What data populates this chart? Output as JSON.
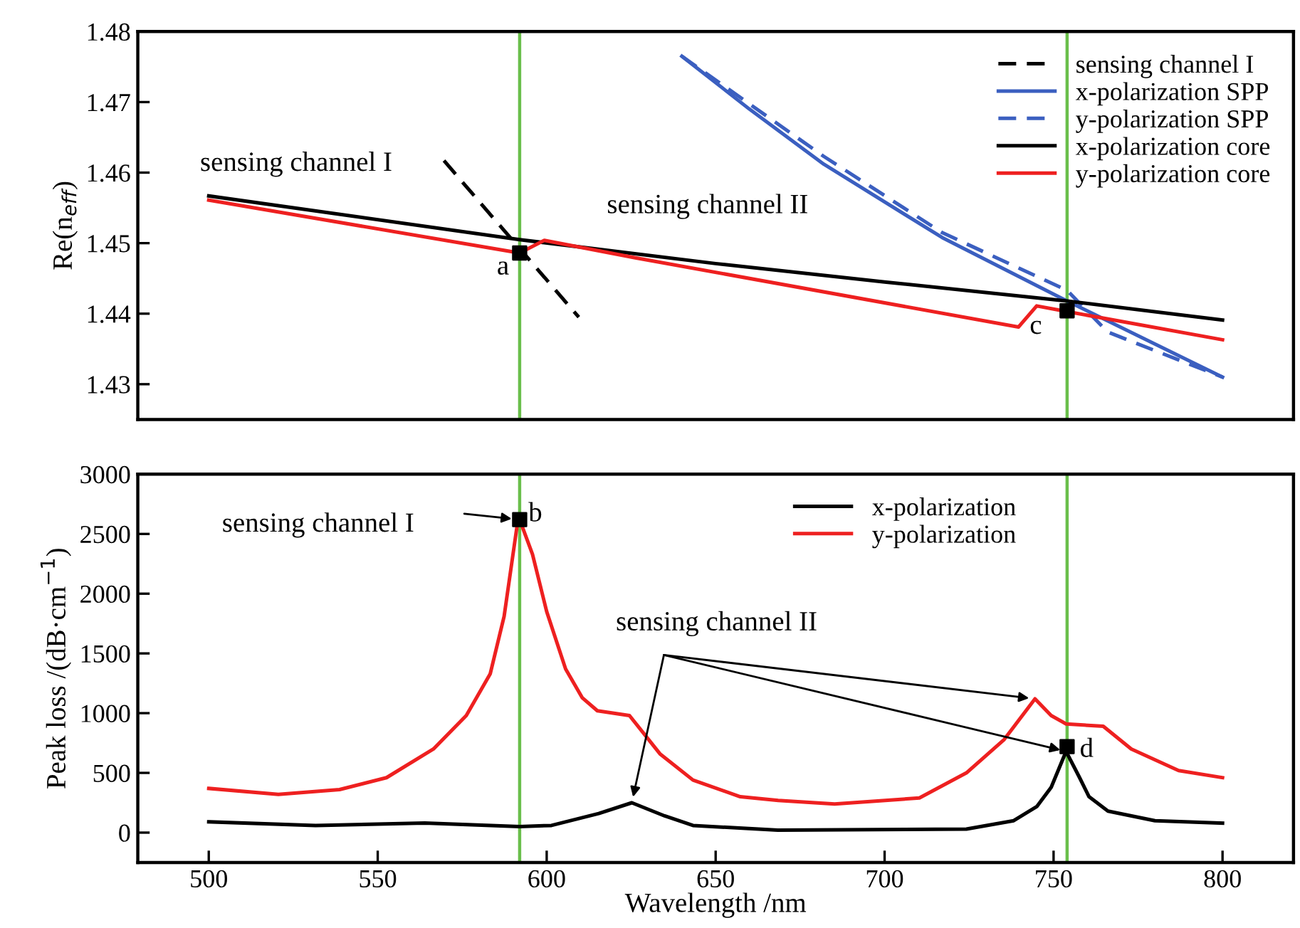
{
  "chart_data": [
    {
      "type": "line",
      "ylabel": "Re(n$_{eff}$)",
      "xlim": [
        479,
        821
      ],
      "ylim": [
        1.425,
        1.48
      ],
      "yticks": [
        1.43,
        1.44,
        1.45,
        1.46,
        1.47,
        1.48
      ],
      "tick_labels": "y",
      "grid": false,
      "legend": "top right",
      "series": [
        {
          "name": "sensing channel I",
          "color": "#000000",
          "line_style": "dashed",
          "x": [
            569.6,
            609.5
          ],
          "values": [
            1.4617,
            1.4395
          ]
        },
        {
          "name": "x-polarization SPP",
          "color": "#3b5fc0",
          "line_style": "solid",
          "x": [
            640,
            660,
            682,
            717,
            754,
            800
          ],
          "values": [
            1.4765,
            1.469,
            1.4612,
            1.4508,
            1.4418,
            1.431
          ]
        },
        {
          "name": "y-polarization SPP",
          "color": "#3b5fc0",
          "line_style": "dashed",
          "x": [
            640,
            682,
            717,
            754,
            766,
            800
          ],
          "values": [
            1.4765,
            1.4623,
            1.4515,
            1.4433,
            1.4374,
            1.431
          ]
        },
        {
          "name": "x-polarization core",
          "color": "#000000",
          "line_style": "solid",
          "x": [
            500,
            592,
            650,
            700,
            754,
            800
          ],
          "values": [
            1.4567,
            1.4505,
            1.4471,
            1.4445,
            1.4418,
            1.4391
          ]
        },
        {
          "name": "y-polarization core",
          "color": "#ee2020",
          "line_style": "solid",
          "x": [
            500,
            589.5,
            592,
            599.3,
            626.5,
            739.6,
            745,
            752.8,
            800
          ],
          "values": [
            1.4561,
            1.4488,
            1.4486,
            1.4504,
            1.4479,
            1.4381,
            1.4411,
            1.4404,
            1.4363
          ]
        },
        {
          "type": "scatter",
          "marker": "square",
          "color": "#000000",
          "x": [
            592,
            754
          ],
          "values": [
            1.4486,
            1.4404
          ]
        }
      ],
      "ref_lines": [
        {
          "axis": "x",
          "value": 592,
          "color": "#6abf4b"
        },
        {
          "axis": "x",
          "value": 754,
          "color": "#6abf4b"
        }
      ],
      "annotations": [
        "sensing channel I",
        "sensing channel II",
        "a",
        "c"
      ]
    },
    {
      "type": "line",
      "xlabel": "Wavelength /nm",
      "ylabel": "Peak loss /(dB·cm$^{−1}$)",
      "xlim": [
        479,
        821
      ],
      "ylim": [
        -250,
        3000
      ],
      "xticks": [
        500,
        550,
        600,
        650,
        700,
        750,
        800
      ],
      "yticks": [
        0,
        500,
        1000,
        1500,
        2000,
        2500,
        3000
      ],
      "grid": false,
      "legend": "top right",
      "series": [
        {
          "name": "x-polarization",
          "color": "#000000",
          "line_style": "solid",
          "x": [
            500,
            531.6,
            563.9,
            592,
            601.4,
            615.4,
            625.2,
            634.9,
            643.3,
            668.4,
            724.2,
            738.2,
            745.1,
            749.3,
            753.7,
            757.7,
            760.5,
            766.1,
            780,
            800
          ],
          "values": [
            90,
            60,
            80,
            50,
            60,
            160,
            250,
            140,
            60,
            20,
            30,
            100,
            220,
            380,
            680,
            460,
            300,
            180,
            100,
            80
          ]
        },
        {
          "name": "y-polarization",
          "color": "#ee2020",
          "line_style": "solid",
          "x": [
            500,
            520.6,
            538.7,
            552.6,
            566.5,
            576.2,
            583.3,
            587.4,
            591.3,
            592,
            595.8,
            600,
            605.6,
            610.5,
            615,
            624.5,
            633.5,
            643.3,
            657.3,
            668.5,
            685.2,
            710.3,
            724.2,
            735.4,
            744.5,
            749.3,
            753.7,
            764.7,
            773,
            787,
            800
          ],
          "values": [
            370,
            320,
            360,
            460,
            700,
            980,
            1330,
            1810,
            2580,
            2620,
            2330,
            1850,
            1370,
            1130,
            1020,
            980,
            660,
            440,
            300,
            270,
            240,
            290,
            500,
            780,
            1120,
            980,
            910,
            890,
            700,
            520,
            460
          ]
        },
        {
          "type": "scatter",
          "marker": "square",
          "color": "#000000",
          "x": [
            592,
            754
          ],
          "values": [
            2620,
            720
          ]
        }
      ],
      "ref_lines": [
        {
          "axis": "x",
          "value": 592,
          "color": "#6abf4b"
        },
        {
          "axis": "x",
          "value": 754,
          "color": "#6abf4b"
        }
      ],
      "annotations": [
        "sensing channel I",
        {
          "text": "sensing channel II",
          "x": 744.5,
          "y": 1120
        },
        "b",
        "d"
      ]
    }
  ]
}
